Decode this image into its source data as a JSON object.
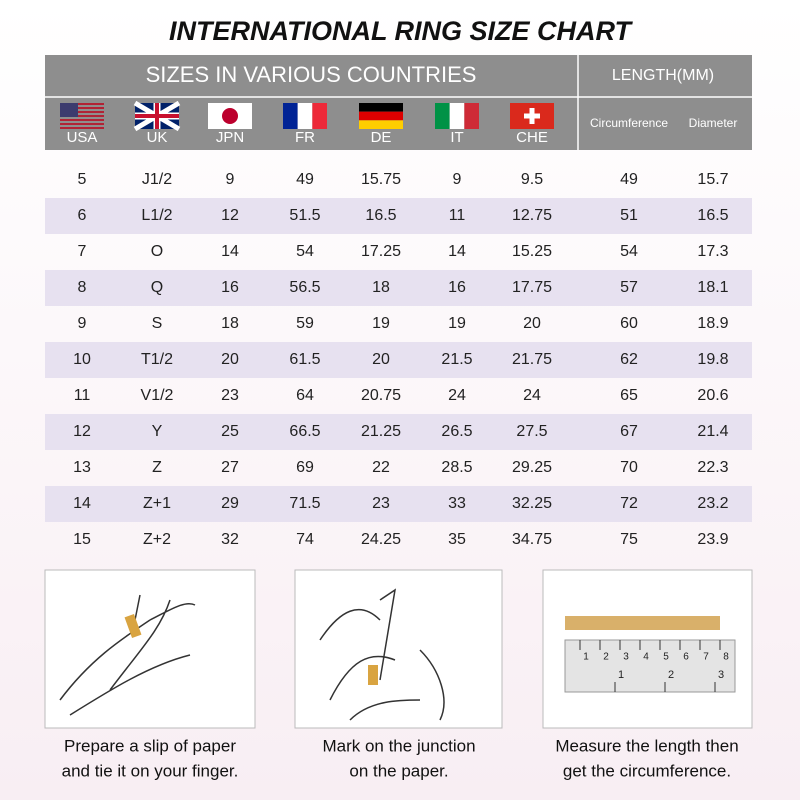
{
  "title": "INTERNATIONAL RING SIZE CHART",
  "header": {
    "countries_label": "SIZES IN VARIOUS COUNTRIES",
    "length_label": "LENGTH(MM)",
    "countries": [
      "USA",
      "UK",
      "JPN",
      "FR",
      "DE",
      "IT",
      "CHE"
    ],
    "length_columns": [
      "Circumference",
      "Diameter"
    ]
  },
  "table": {
    "rows": [
      [
        "5",
        "J1/2",
        "9",
        "49",
        "15.75",
        "9",
        "9.5",
        "49",
        "15.7"
      ],
      [
        "6",
        "L1/2",
        "12",
        "51.5",
        "16.5",
        "11",
        "12.75",
        "51",
        "16.5"
      ],
      [
        "7",
        "O",
        "14",
        "54",
        "17.25",
        "14",
        "15.25",
        "54",
        "17.3"
      ],
      [
        "8",
        "Q",
        "16",
        "56.5",
        "18",
        "16",
        "17.75",
        "57",
        "18.1"
      ],
      [
        "9",
        "S",
        "18",
        "59",
        "19",
        "19",
        "20",
        "60",
        "18.9"
      ],
      [
        "10",
        "T1/2",
        "20",
        "61.5",
        "20",
        "21.5",
        "21.75",
        "62",
        "19.8"
      ],
      [
        "11",
        "V1/2",
        "23",
        "64",
        "20.75",
        "24",
        "24",
        "65",
        "20.6"
      ],
      [
        "12",
        "Y",
        "25",
        "66.5",
        "21.25",
        "26.5",
        "27.5",
        "67",
        "21.4"
      ],
      [
        "13",
        "Z",
        "27",
        "69",
        "22",
        "28.5",
        "29.25",
        "70",
        "22.3"
      ],
      [
        "14",
        "Z+1",
        "29",
        "71.5",
        "23",
        "33",
        "32.25",
        "72",
        "23.2"
      ],
      [
        "15",
        "Z+2",
        "32",
        "74",
        "24.25",
        "35",
        "34.75",
        "75",
        "23.9"
      ]
    ]
  },
  "ruler": {
    "cm": [
      "1",
      "2",
      "3",
      "4",
      "5",
      "6",
      "7",
      "8"
    ],
    "inch": [
      "1",
      "2",
      "3"
    ]
  },
  "steps": [
    {
      "line1": "Prepare a slip of paper",
      "line2": "and tie it on your finger."
    },
    {
      "line1": "Mark on the junction",
      "line2": "on the paper."
    },
    {
      "line1": "Measure the length then",
      "line2": "get the circumference."
    }
  ]
}
